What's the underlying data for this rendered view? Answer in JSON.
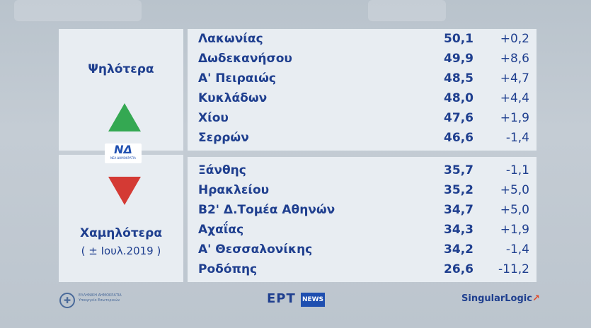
{
  "left_panel": {
    "high_label": "Ψηλότερα",
    "low_label": "Χαμηλότερα",
    "period_label": "( ± Ιουλ.2019 )",
    "logo_text": "ΝΔ",
    "logo_subtext": "ΝΕΑ ΔΗΜΟΚΡΑΤΙΑ",
    "up_arrow_icon": "triangle-up-icon",
    "down_arrow_icon": "triangle-down-icon",
    "colors": {
      "up": "#34a852",
      "down": "#d43a34",
      "text": "#1f3f8f"
    }
  },
  "highest": [
    {
      "name": "Λακωνίας",
      "value": "50,1",
      "change": "+0,2"
    },
    {
      "name": "Δωδεκανήσου",
      "value": "49,9",
      "change": "+8,6"
    },
    {
      "name": "Α' Πειραιώς",
      "value": "48,5",
      "change": "+4,7"
    },
    {
      "name": "Κυκλάδων",
      "value": "48,0",
      "change": "+4,4"
    },
    {
      "name": "Χίου",
      "value": "47,6",
      "change": "+1,9"
    },
    {
      "name": "Σερρών",
      "value": "46,6",
      "change": "-1,4"
    }
  ],
  "lowest": [
    {
      "name": "Ξάνθης",
      "value": "35,7",
      "change": "-1,1"
    },
    {
      "name": "Ηρακλείου",
      "value": "35,2",
      "change": "+5,0"
    },
    {
      "name": "Β2' Δ.Τομέα Αθηνών",
      "value": "34,7",
      "change": "+5,0"
    },
    {
      "name": "Αχαΐας",
      "value": "34,3",
      "change": "+1,9"
    },
    {
      "name": "Α' Θεσσαλονίκης",
      "value": "34,2",
      "change": "-1,4"
    },
    {
      "name": "Ροδόπης",
      "value": "26,6",
      "change": "-11,2"
    }
  ],
  "footer": {
    "crest_icon": "greek-crest-icon",
    "crest_text_1": "ΕΛΛΗΝΙΚΗ ΔΗΜΟΚΡΑΤΙΑ",
    "crest_text_2": "Υπουργείο Εσωτερικών",
    "ert_label": "ΕΡΤ",
    "news_label": "NEWS",
    "singular_label": "SingularLogic",
    "singular_accent": "↗"
  }
}
